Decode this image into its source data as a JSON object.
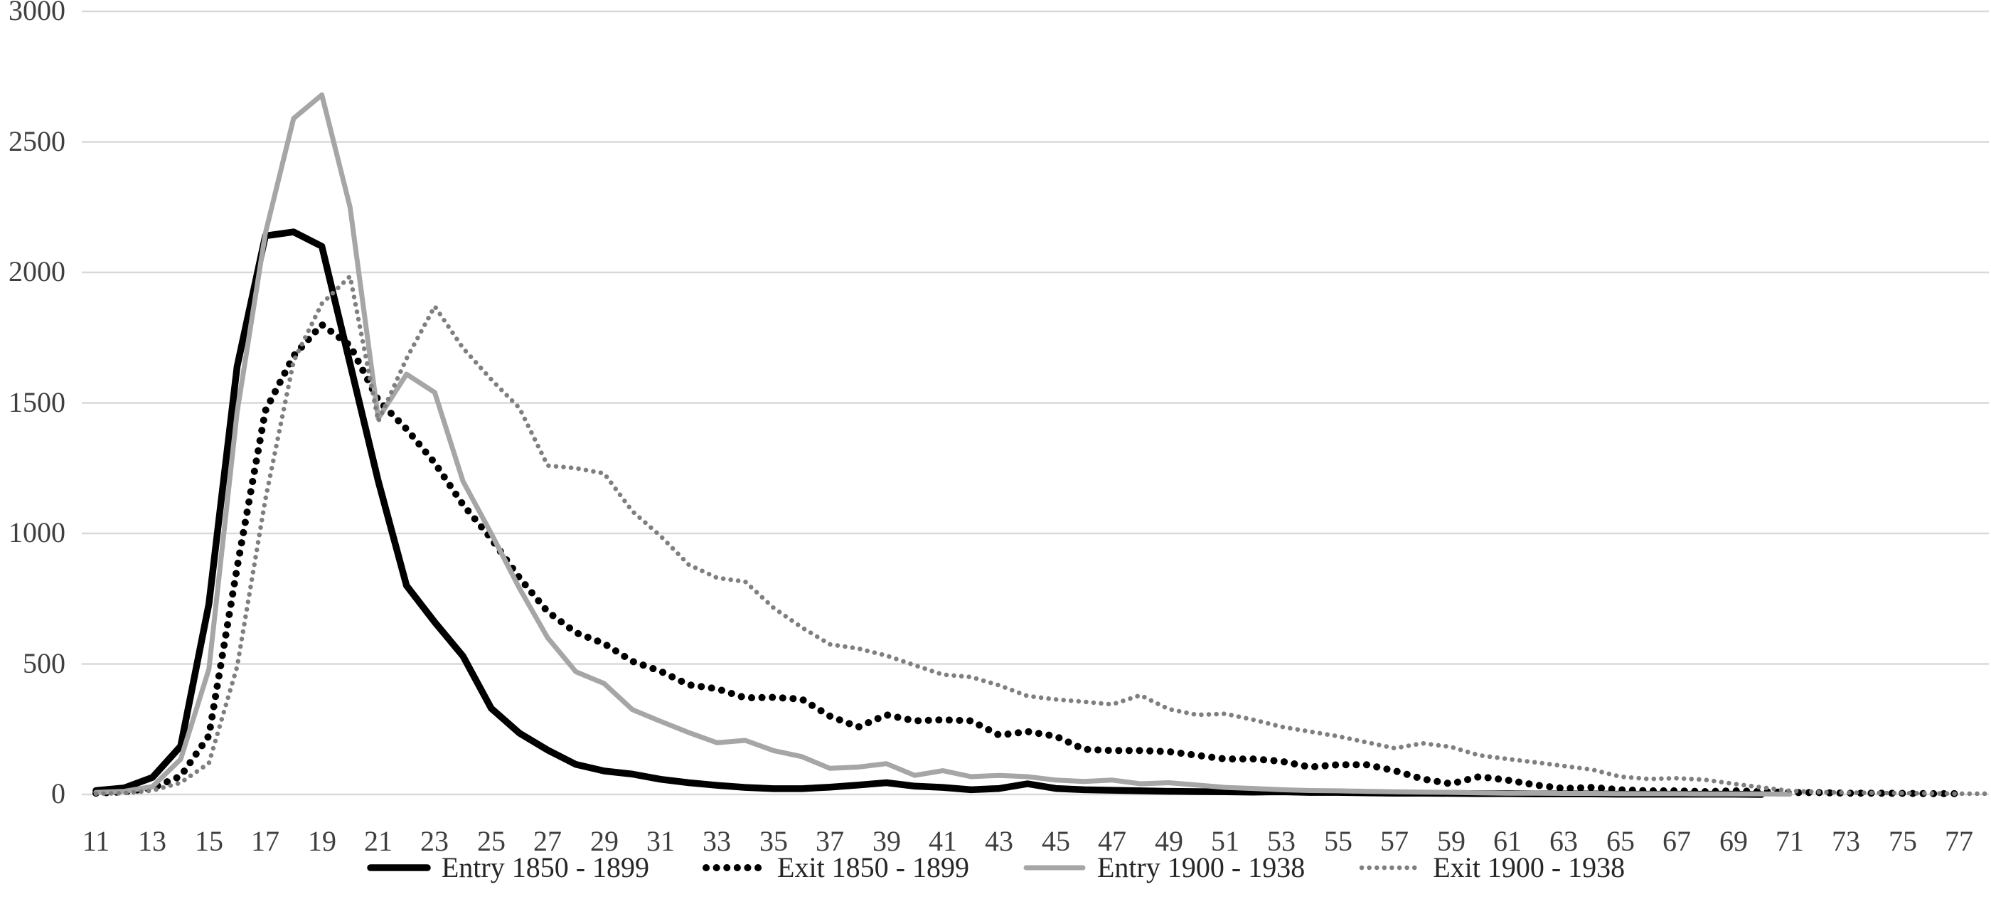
{
  "chart_data": {
    "type": "line",
    "title": "",
    "xlabel": "",
    "ylabel": "",
    "x_range": [
      11,
      78
    ],
    "x_ticks": [
      11,
      13,
      15,
      17,
      19,
      21,
      23,
      25,
      27,
      29,
      31,
      33,
      35,
      37,
      39,
      41,
      43,
      45,
      47,
      49,
      51,
      53,
      55,
      57,
      59,
      61,
      63,
      65,
      67,
      69,
      71,
      73,
      75,
      77
    ],
    "ylim": [
      0,
      3000
    ],
    "y_ticks": [
      0,
      500,
      1000,
      1500,
      2000,
      2500,
      3000
    ],
    "grid": "horizontal",
    "legend_position": "bottom",
    "x": [
      11,
      12,
      13,
      14,
      15,
      16,
      17,
      18,
      19,
      20,
      21,
      22,
      23,
      24,
      25,
      26,
      27,
      28,
      29,
      30,
      31,
      32,
      33,
      34,
      35,
      36,
      37,
      38,
      39,
      40,
      41,
      42,
      43,
      44,
      45,
      46,
      47,
      48,
      49,
      50,
      51,
      52,
      53,
      54,
      55,
      56,
      57,
      58,
      59,
      60,
      61,
      62,
      63,
      64,
      65,
      66,
      67,
      68,
      69,
      70,
      71,
      72,
      73,
      74,
      75,
      76,
      77,
      78
    ],
    "series": [
      {
        "name": "Entry 1850 - 1899",
        "line_style": "solid",
        "color": "#000000",
        "stroke_width": 9.5,
        "dot_gap": 0,
        "values": [
          15,
          25,
          65,
          185,
          730,
          1640,
          2140,
          2155,
          2100,
          1650,
          1200,
          800,
          660,
          530,
          330,
          235,
          170,
          115,
          90,
          78,
          58,
          45,
          35,
          27,
          22,
          22,
          28,
          36,
          45,
          32,
          27,
          18,
          23,
          41,
          23,
          18,
          16,
          14,
          12,
          11,
          10,
          9,
          10,
          8,
          8,
          6,
          5,
          5,
          4,
          3,
          3,
          2,
          2,
          2,
          1,
          1,
          1,
          1,
          1,
          0,
          null,
          null,
          null,
          null,
          null,
          null,
          null,
          null
        ]
      },
      {
        "name": "Exit 1850 - 1899",
        "line_style": "dotted",
        "color": "#000000",
        "stroke_width": 10,
        "dot_gap": 14.5,
        "values": [
          5,
          10,
          25,
          70,
          225,
          870,
          1470,
          1680,
          1800,
          1720,
          1510,
          1400,
          1270,
          1110,
          980,
          830,
          700,
          620,
          578,
          510,
          472,
          420,
          405,
          370,
          372,
          365,
          300,
          258,
          305,
          282,
          286,
          282,
          227,
          241,
          223,
          173,
          168,
          168,
          164,
          150,
          136,
          136,
          127,
          105,
          114,
          114,
          91,
          59,
          41,
          68,
          55,
          36,
          23,
          27,
          18,
          14,
          14,
          11,
          14,
          11,
          7,
          7,
          5,
          5,
          4,
          3,
          3,
          null
        ]
      },
      {
        "name": "Entry 1900 - 1938",
        "line_style": "solid",
        "color": "#a6a6a6",
        "stroke_width": 7,
        "dot_gap": 0,
        "values": [
          8,
          12,
          30,
          135,
          480,
          1465,
          2150,
          2590,
          2680,
          2250,
          1440,
          1610,
          1540,
          1200,
          1000,
          790,
          600,
          470,
          425,
          325,
          280,
          237,
          198,
          207,
          168,
          145,
          100,
          105,
          118,
          73,
          91,
          68,
          73,
          68,
          55,
          50,
          55,
          41,
          45,
          36,
          27,
          23,
          18,
          15,
          14,
          12,
          10,
          9,
          8,
          6,
          5,
          5,
          4,
          4,
          3,
          3,
          3,
          2,
          2,
          2,
          1,
          null,
          null,
          null,
          null,
          null,
          null,
          null
        ]
      },
      {
        "name": "Exit 1900 - 1938",
        "line_style": "dotted",
        "color": "#7f7f7f",
        "stroke_width": 6.5,
        "dot_gap": 10.5,
        "values": [
          3,
          5,
          15,
          45,
          120,
          490,
          1130,
          1660,
          1880,
          1985,
          1430,
          1670,
          1870,
          1710,
          1590,
          1480,
          1260,
          1250,
          1230,
          1085,
          990,
          880,
          830,
          815,
          715,
          640,
          575,
          559,
          532,
          495,
          459,
          450,
          418,
          377,
          364,
          355,
          345,
          380,
          327,
          305,
          309,
          286,
          259,
          241,
          223,
          200,
          177,
          196,
          182,
          150,
          136,
          123,
          109,
          95,
          68,
          59,
          62,
          56,
          41,
          27,
          14,
          9,
          7,
          6,
          5,
          4,
          3,
          3
        ]
      }
    ],
    "colors": {
      "background": "#ffffff",
      "gridline": "#d9d9d9",
      "tick_text": "#3f3f3f",
      "legend_text": "#262626"
    }
  }
}
